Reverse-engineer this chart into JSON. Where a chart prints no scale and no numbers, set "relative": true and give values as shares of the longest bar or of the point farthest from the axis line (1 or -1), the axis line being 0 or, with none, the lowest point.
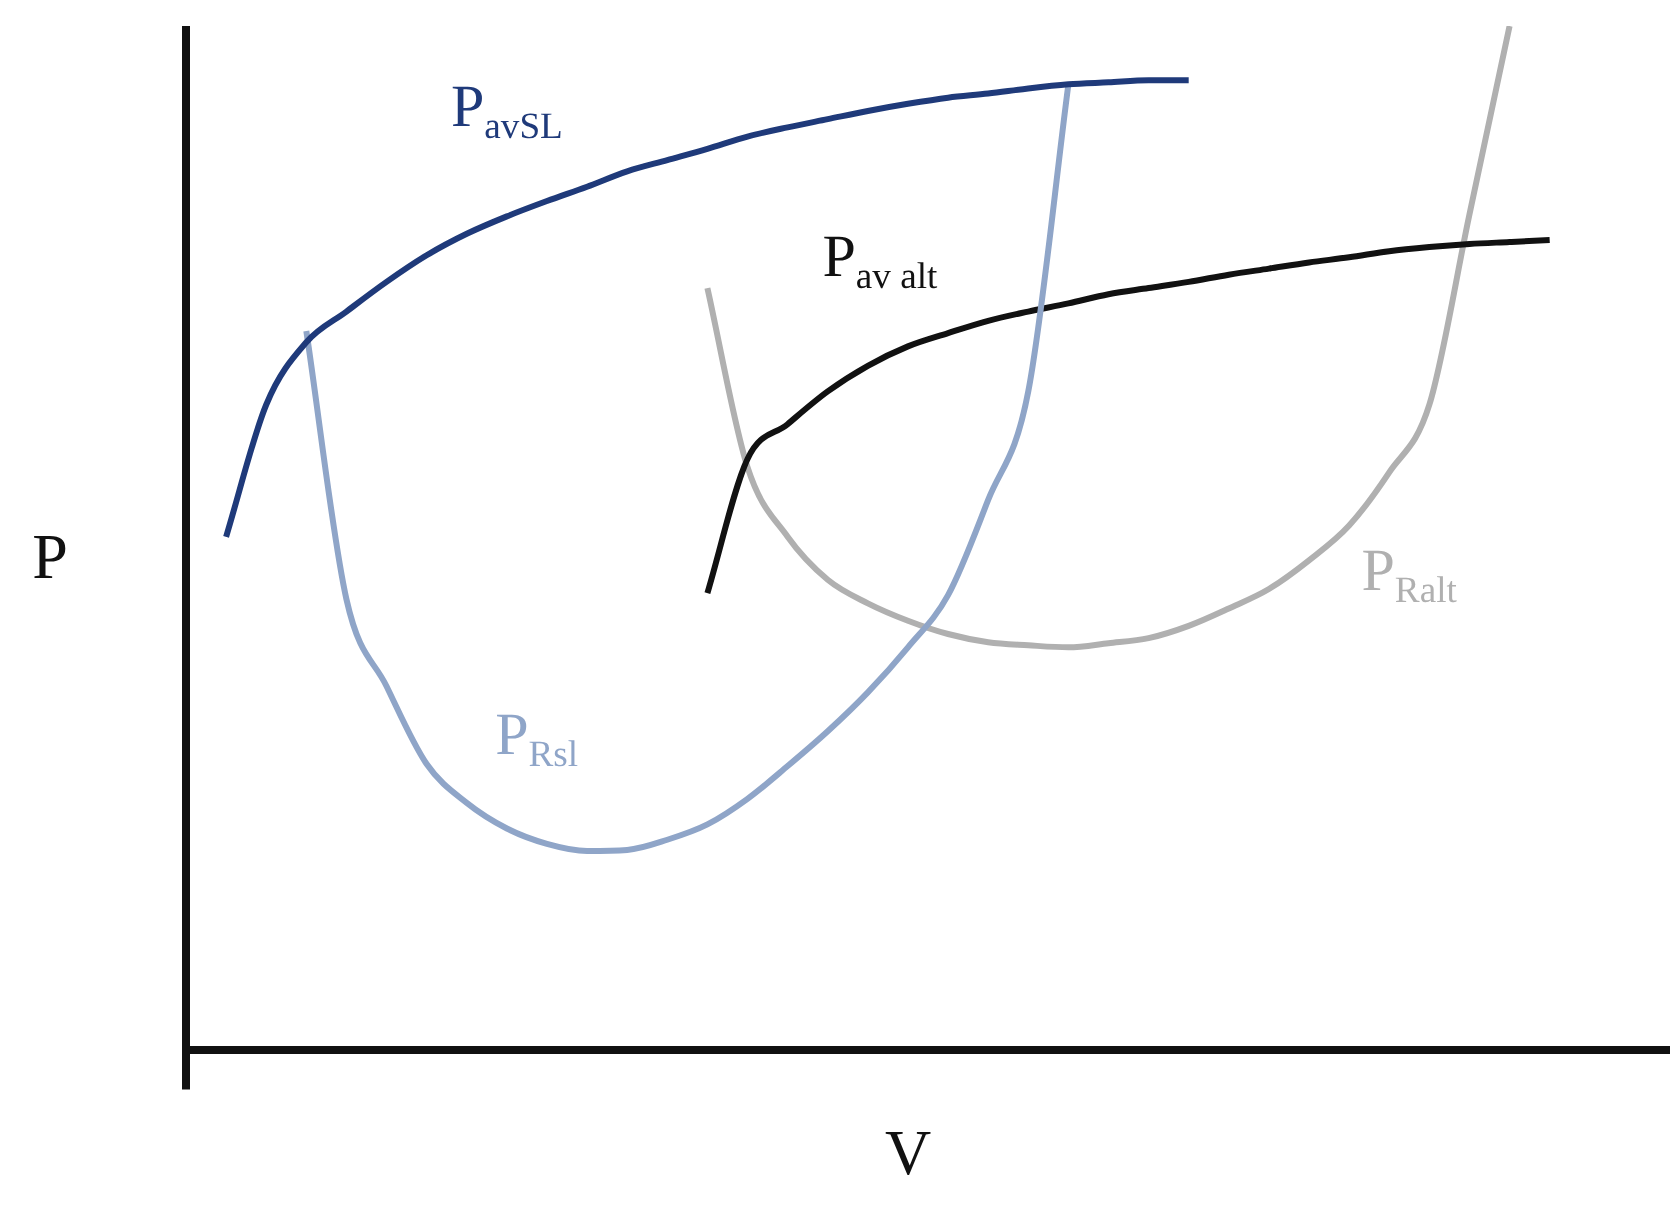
{
  "chart_data": {
    "type": "line",
    "relative": true,
    "xlabel": "V",
    "ylabel": "P",
    "categories": [
      null,
      null,
      null,
      null,
      null,
      null,
      null,
      null,
      null,
      null,
      null,
      null,
      null,
      null,
      null,
      null,
      null,
      null,
      null,
      null,
      null,
      null,
      null,
      null,
      null,
      null,
      null,
      null,
      null,
      null,
      null,
      null,
      null,
      null,
      null,
      null,
      null,
      null
    ],
    "series": [
      {
        "name": "P$_{avSL}$",
        "color": "#1f3a7a",
        "values": [
          null,
          0.501,
          0.63,
          0.691,
          0.721,
          0.75,
          0.776,
          0.797,
          0.814,
          0.829,
          0.843,
          0.858,
          0.869,
          0.88,
          0.892,
          0.901,
          0.909,
          0.917,
          0.924,
          0.93,
          0.934,
          0.939,
          0.943,
          0.945,
          0.947,
          0.947,
          null,
          null,
          null,
          null,
          null,
          null,
          null,
          null,
          null,
          null,
          null,
          null
        ]
      },
      {
        "name": "P$_{Rsl}$",
        "color": "#8fa5c8",
        "values": [
          null,
          null,
          null,
          0.702,
          0.44,
          0.355,
          0.279,
          0.241,
          0.216,
          0.201,
          0.194,
          0.195,
          0.205,
          0.22,
          0.245,
          0.277,
          0.311,
          0.349,
          0.393,
          0.444,
          0.537,
          0.643,
          0.943,
          null,
          null,
          null,
          null,
          null,
          null,
          null,
          null,
          null,
          null,
          null,
          null,
          null,
          null,
          null
        ]
      },
      {
        "name": "P$_{av alt}$",
        "color": "#111111",
        "values": [
          null,
          null,
          null,
          null,
          null,
          null,
          null,
          null,
          null,
          null,
          null,
          null,
          null,
          0.446,
          0.577,
          0.611,
          0.643,
          0.668,
          0.687,
          0.7,
          0.712,
          0.721,
          0.729,
          0.738,
          0.744,
          0.75,
          0.757,
          0.763,
          0.769,
          0.774,
          0.78,
          0.784,
          0.787,
          0.789,
          0.791,
          null,
          null,
          null
        ]
      },
      {
        "name": "P$_{Ralt}$",
        "color": "#b0b0b0",
        "values": [
          null,
          null,
          null,
          null,
          null,
          null,
          null,
          null,
          null,
          null,
          null,
          null,
          null,
          0.744,
          0.569,
          0.501,
          0.459,
          0.436,
          0.419,
          0.406,
          0.398,
          0.395,
          0.393,
          0.397,
          0.402,
          0.414,
          0.431,
          0.45,
          0.478,
          0.512,
          0.564,
          0.63,
          0.816,
          1,
          null,
          null,
          null,
          null
        ]
      }
    ]
  }
}
